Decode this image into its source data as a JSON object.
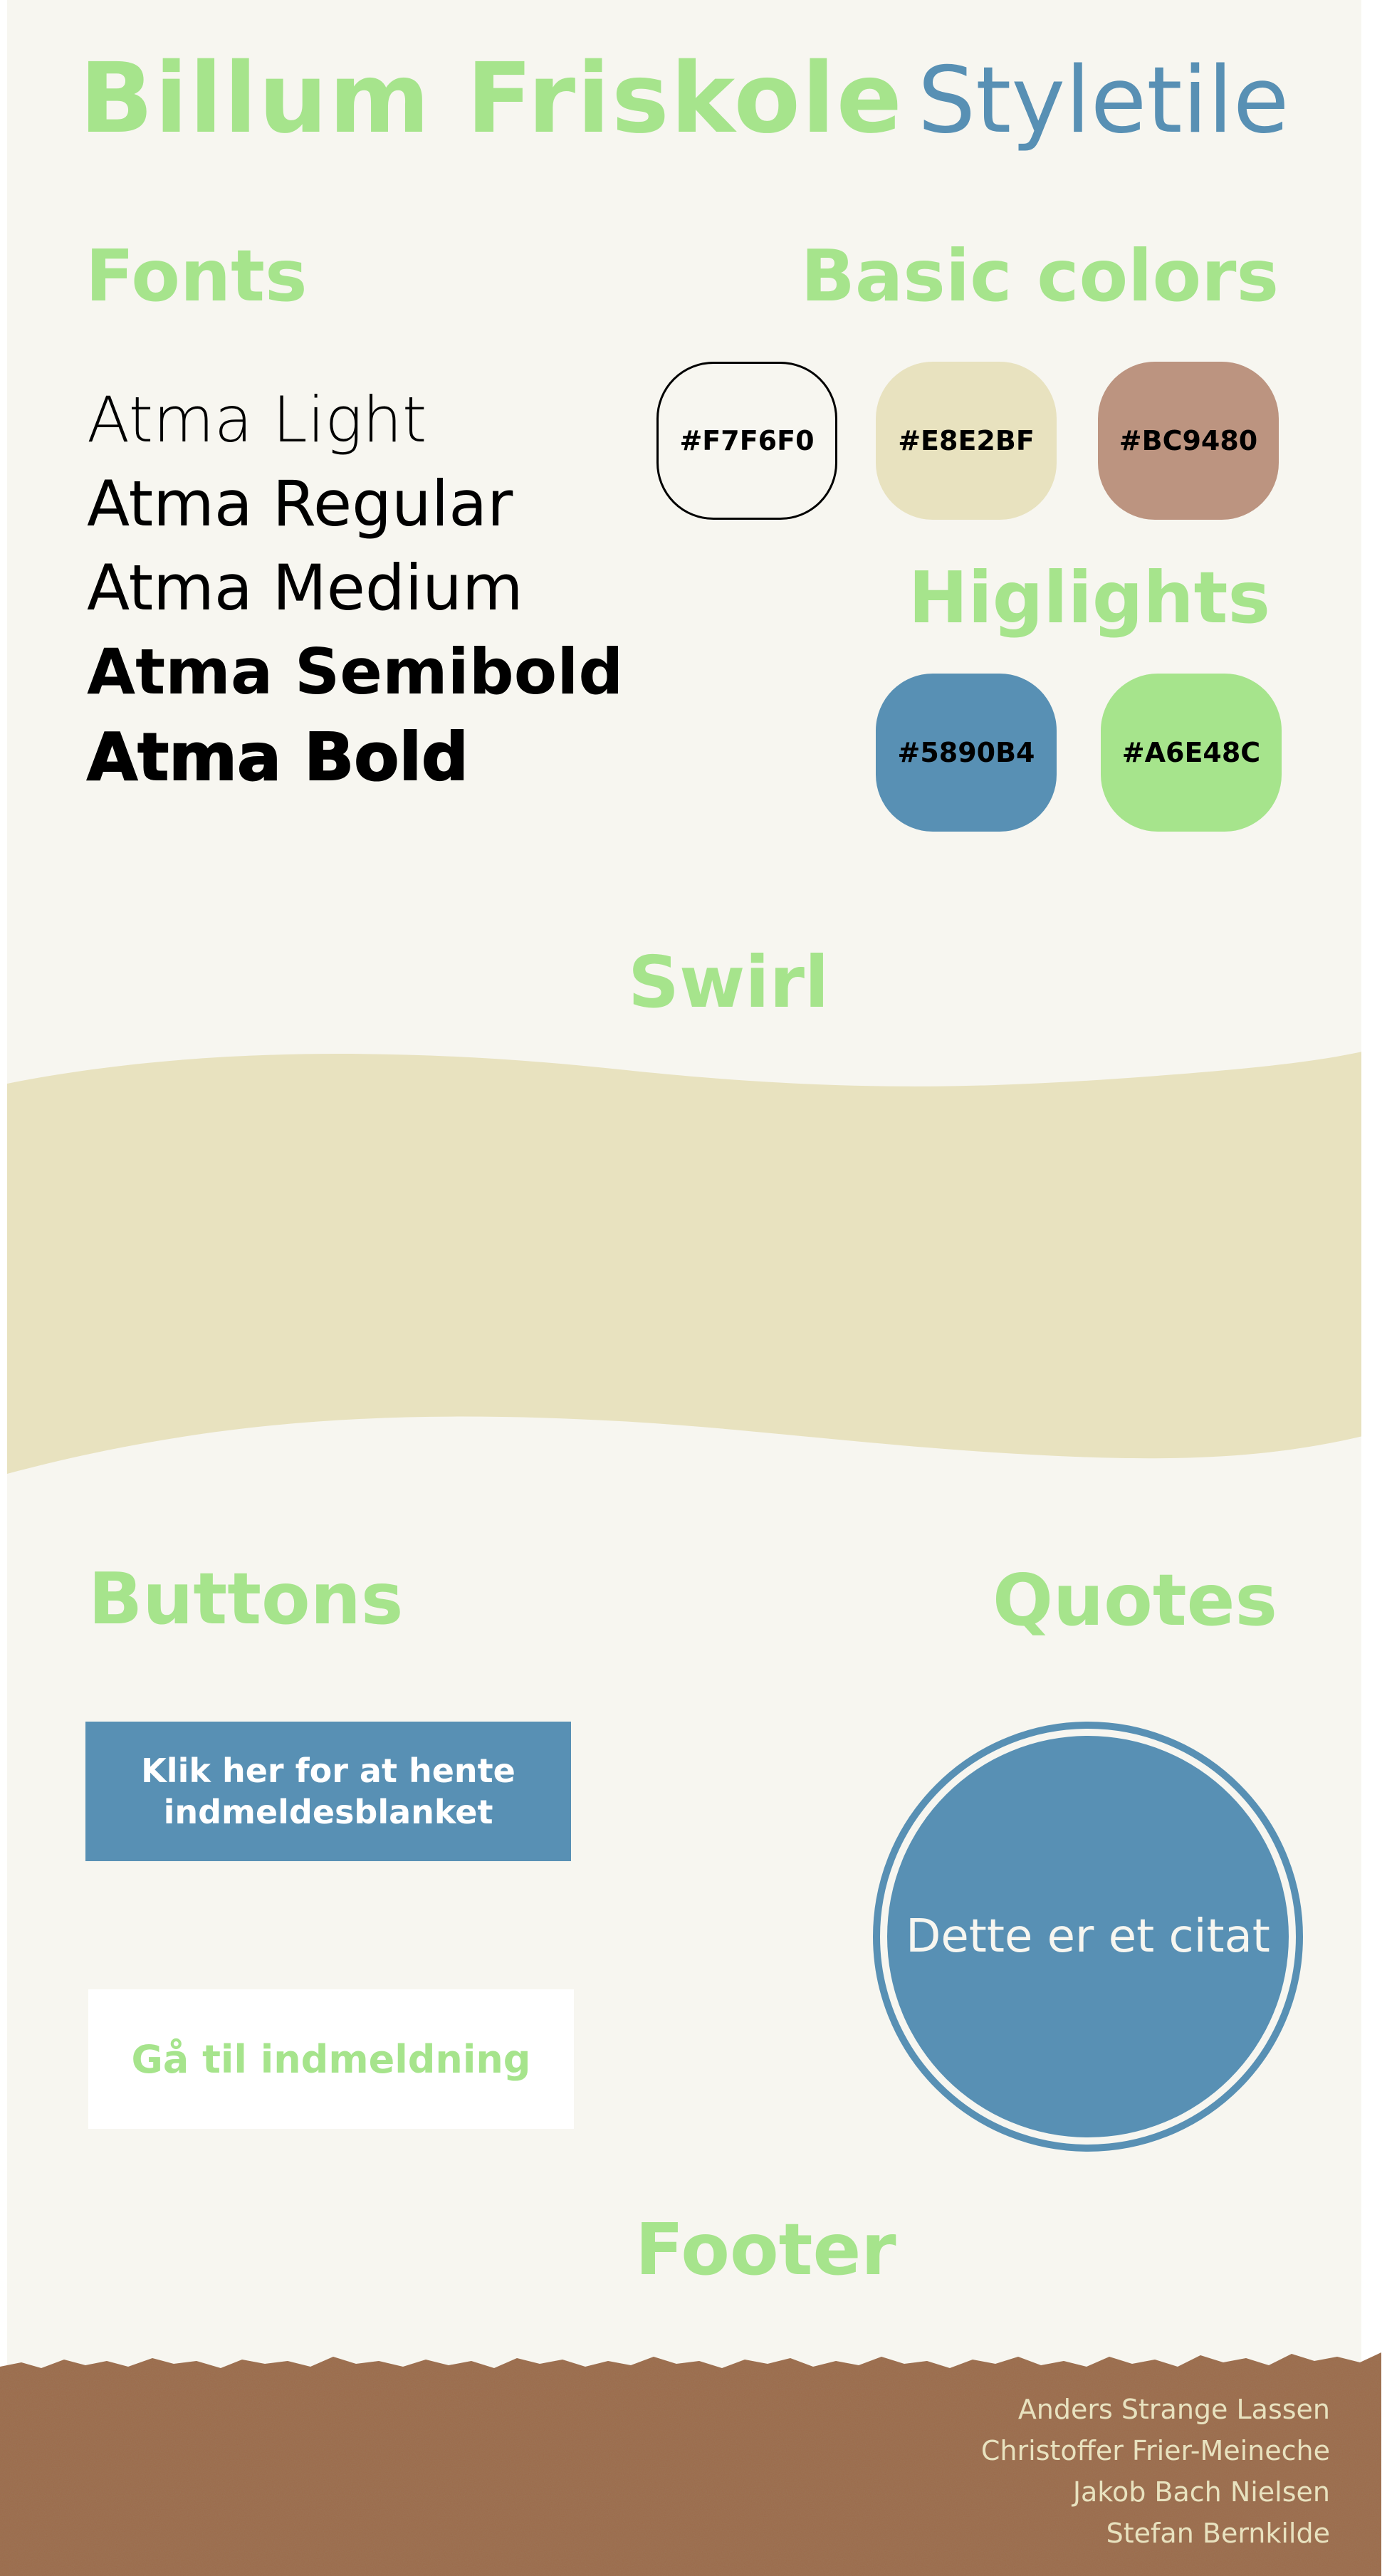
{
  "title": {
    "main": "Billum Friskole",
    "sub": "Styletile"
  },
  "fonts": {
    "heading": "Fonts",
    "samples": [
      "Atma Light",
      "Atma Regular",
      "Atma Medium",
      "Atma Semibold",
      "Atma Bold"
    ]
  },
  "basic_colors": {
    "heading": "Basic colors",
    "swatches": [
      {
        "label": "#F7F6F0",
        "color": "#f7f6f0"
      },
      {
        "label": "#E8E2BF",
        "color": "#e8e2bf"
      },
      {
        "label": "#BC9480",
        "color": "#bc9480"
      }
    ]
  },
  "highlights": {
    "heading": "Higlights",
    "swatches": [
      {
        "label": "#5890B4",
        "color": "#5890b4"
      },
      {
        "label": "#A6E48C",
        "color": "#a6e48c"
      }
    ]
  },
  "swirl": {
    "heading": "Swirl",
    "color": "#e8e2bf"
  },
  "buttons": {
    "heading": "Buttons",
    "primary_label": "Klik her for at hente indmeldesblanket",
    "secondary_label": "Gå til indmeldning"
  },
  "quotes": {
    "heading": "Quotes",
    "text": "Dette er et citat"
  },
  "footer": {
    "heading": "Footer",
    "names": [
      "Anders Strange Lassen",
      "Christoffer Frier-Meineche",
      "Jakob Bach Nielsen",
      "Stefan Bernkilde"
    ],
    "color": "#9b6a4a"
  }
}
